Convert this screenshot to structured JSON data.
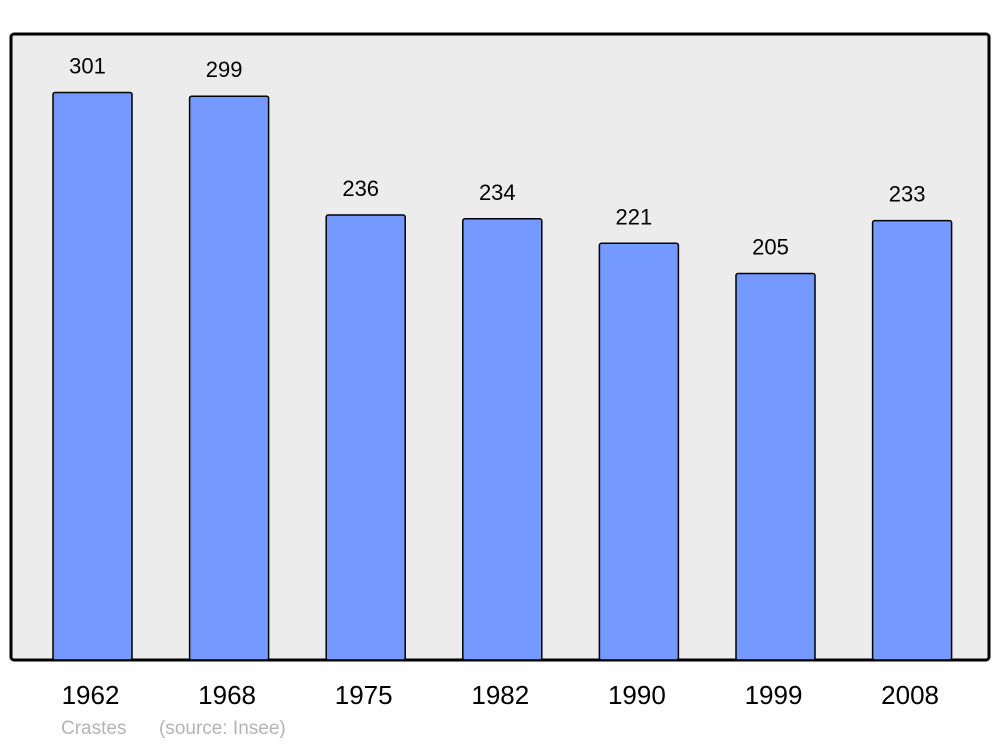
{
  "chart_data": {
    "type": "bar",
    "categories": [
      "1962",
      "1968",
      "1975",
      "1982",
      "1990",
      "1999",
      "2008"
    ],
    "values": [
      301,
      299,
      236,
      234,
      221,
      205,
      233
    ],
    "data_labels": [
      "301",
      "299",
      "236",
      "234",
      "221",
      "205",
      "233"
    ],
    "title": "",
    "xlabel": "",
    "ylabel": "",
    "ylim": [
      0,
      332
    ],
    "grid": false,
    "colors": {
      "bar": "#7499ff",
      "background": "#ececec",
      "border": "#000000"
    }
  },
  "footer": {
    "commune": "Crastes",
    "source": "(source: Insee)"
  }
}
